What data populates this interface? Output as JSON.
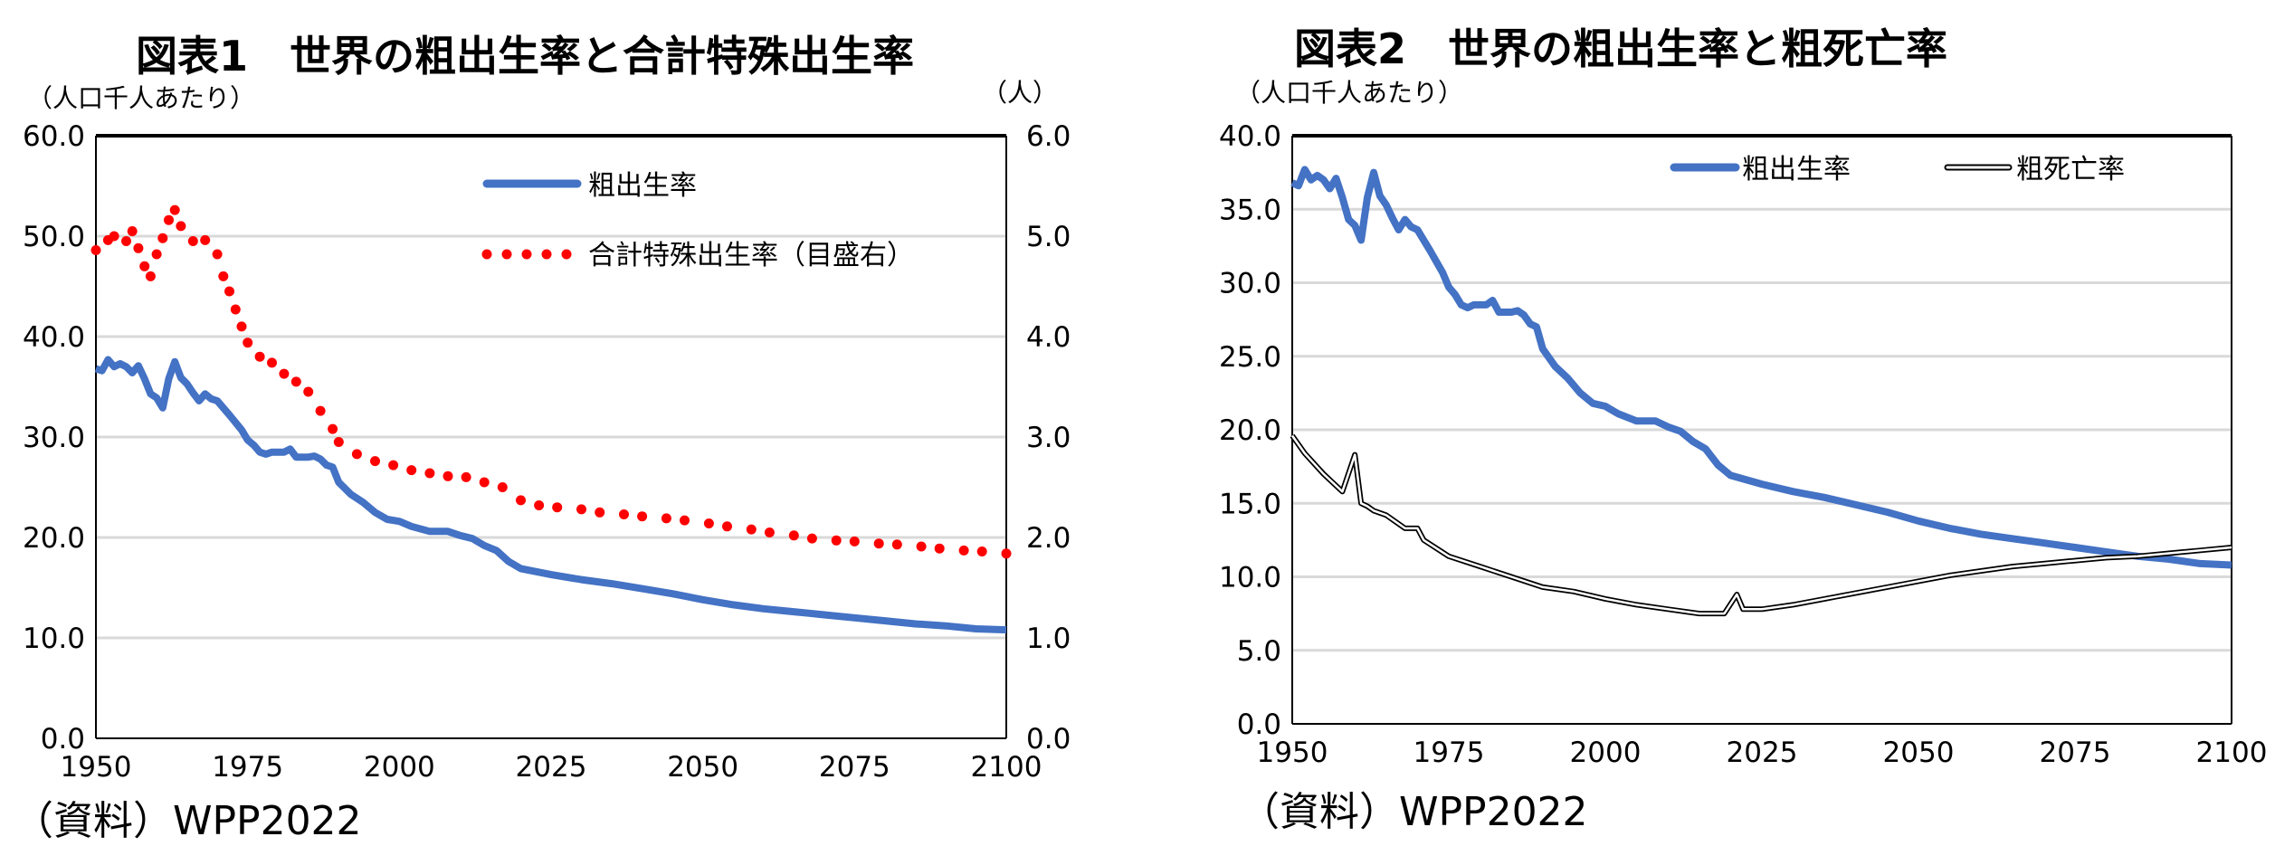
{
  "chart_data": [
    {
      "type": "line",
      "title": "図表1　世界の粗出生率と合計特殊出生率",
      "ylabel": "（人口千人あたり）",
      "y2label": "（人）",
      "source": "（資料）WPP2022",
      "xlim": [
        1950,
        2100
      ],
      "xticks": [
        "1950",
        "1975",
        "2000",
        "2025",
        "2050",
        "2075",
        "2100"
      ],
      "ylim": [
        0,
        60
      ],
      "yticks": [
        "0.0",
        "10.0",
        "20.0",
        "30.0",
        "40.0",
        "50.0",
        "60.0"
      ],
      "y2lim": [
        0,
        6
      ],
      "y2ticks": [
        "0.0",
        "1.0",
        "2.0",
        "3.0",
        "4.0",
        "5.0",
        "6.0"
      ],
      "grid": true,
      "legend_position": "top-right",
      "series": [
        {
          "name": "粗出生率",
          "axis": "left",
          "style": "solid",
          "color": "#4472C4",
          "x": [
            1950,
            1951,
            1952,
            1953,
            1954,
            1955,
            1956,
            1957,
            1958,
            1959,
            1960,
            1961,
            1962,
            1963,
            1964,
            1965,
            1966,
            1967,
            1968,
            1969,
            1970,
            1972,
            1974,
            1975,
            1976,
            1977,
            1978,
            1979,
            1981,
            1982,
            1983,
            1985,
            1986,
            1987,
            1988,
            1989,
            1990,
            1992,
            1994,
            1996,
            1998,
            2000,
            2002,
            2005,
            2008,
            2010,
            2012,
            2014,
            2016,
            2018,
            2020,
            2025,
            2030,
            2035,
            2040,
            2045,
            2050,
            2055,
            2060,
            2065,
            2070,
            2075,
            2080,
            2085,
            2090,
            2095,
            2100
          ],
          "y": [
            36.8,
            36.6,
            37.7,
            37.0,
            37.3,
            37.0,
            36.4,
            37.1,
            35.8,
            34.3,
            33.9,
            32.9,
            35.8,
            37.5,
            35.9,
            35.3,
            34.4,
            33.6,
            34.3,
            33.8,
            33.6,
            32.2,
            30.7,
            29.7,
            29.2,
            28.5,
            28.3,
            28.5,
            28.5,
            28.8,
            28.0,
            28.0,
            28.1,
            27.8,
            27.2,
            27.0,
            25.5,
            24.3,
            23.5,
            22.5,
            21.8,
            21.6,
            21.1,
            20.6,
            20.6,
            20.2,
            19.9,
            19.2,
            18.7,
            17.6,
            16.9,
            16.3,
            15.8,
            15.4,
            14.9,
            14.4,
            13.8,
            13.3,
            12.9,
            12.6,
            12.3,
            12.0,
            11.7,
            11.4,
            11.2,
            10.9,
            10.8
          ]
        },
        {
          "name": "合計特殊出生率（目盛右）",
          "axis": "right",
          "style": "dotted",
          "color": "#FF0000",
          "x": [
            1950,
            1952,
            1953,
            1955,
            1956,
            1957,
            1958,
            1959,
            1960,
            1961,
            1962,
            1963,
            1964,
            1966,
            1968,
            1970,
            1971,
            1972,
            1973,
            1974,
            1975,
            1977,
            1979,
            1981,
            1983,
            1985,
            1987,
            1989,
            1990,
            1993,
            1996,
            1999,
            2002,
            2005,
            2008,
            2011,
            2014,
            2017,
            2020,
            2023,
            2026,
            2030,
            2033,
            2037,
            2040,
            2044,
            2047,
            2051,
            2054,
            2058,
            2061,
            2065,
            2068,
            2072,
            2075,
            2079,
            2082,
            2086,
            2089,
            2093,
            2096,
            2100
          ],
          "y": [
            4.86,
            4.96,
            5.0,
            4.95,
            5.05,
            4.88,
            4.7,
            4.6,
            4.82,
            4.98,
            5.16,
            5.26,
            5.1,
            4.95,
            4.96,
            4.82,
            4.6,
            4.45,
            4.27,
            4.1,
            3.94,
            3.8,
            3.74,
            3.63,
            3.55,
            3.45,
            3.26,
            3.08,
            2.95,
            2.83,
            2.76,
            2.72,
            2.67,
            2.64,
            2.61,
            2.6,
            2.55,
            2.5,
            2.37,
            2.32,
            2.3,
            2.28,
            2.25,
            2.23,
            2.21,
            2.19,
            2.17,
            2.14,
            2.11,
            2.08,
            2.05,
            2.02,
            1.99,
            1.97,
            1.96,
            1.94,
            1.93,
            1.91,
            1.89,
            1.87,
            1.86,
            1.84
          ]
        }
      ]
    },
    {
      "type": "line",
      "title": "図表2　世界の粗出生率と粗死亡率",
      "ylabel": "（人口千人あたり）",
      "source": "（資料）WPP2022",
      "xlim": [
        1950,
        2100
      ],
      "xticks": [
        "1950",
        "1975",
        "2000",
        "2025",
        "2050",
        "2075",
        "2100"
      ],
      "ylim": [
        0,
        40
      ],
      "yticks": [
        "0.0",
        "5.0",
        "10.0",
        "15.0",
        "20.0",
        "25.0",
        "30.0",
        "35.0",
        "40.0"
      ],
      "grid": true,
      "legend_position": "top-right",
      "series": [
        {
          "name": "粗出生率",
          "style": "solid",
          "color": "#4472C4",
          "x": [
            1950,
            1951,
            1952,
            1953,
            1954,
            1955,
            1956,
            1957,
            1958,
            1959,
            1960,
            1961,
            1962,
            1963,
            1964,
            1965,
            1966,
            1967,
            1968,
            1969,
            1970,
            1972,
            1974,
            1975,
            1976,
            1977,
            1978,
            1979,
            1981,
            1982,
            1983,
            1985,
            1986,
            1987,
            1988,
            1989,
            1990,
            1992,
            1994,
            1996,
            1998,
            2000,
            2002,
            2005,
            2008,
            2010,
            2012,
            2014,
            2016,
            2018,
            2020,
            2025,
            2030,
            2035,
            2040,
            2045,
            2050,
            2055,
            2060,
            2065,
            2070,
            2075,
            2080,
            2085,
            2090,
            2095,
            2100
          ],
          "y": [
            36.8,
            36.6,
            37.7,
            37.0,
            37.3,
            37.0,
            36.4,
            37.1,
            35.8,
            34.3,
            33.9,
            32.9,
            35.8,
            37.5,
            35.9,
            35.3,
            34.4,
            33.6,
            34.3,
            33.8,
            33.6,
            32.2,
            30.7,
            29.7,
            29.2,
            28.5,
            28.3,
            28.5,
            28.5,
            28.8,
            28.0,
            28.0,
            28.1,
            27.8,
            27.2,
            27.0,
            25.5,
            24.3,
            23.5,
            22.5,
            21.8,
            21.6,
            21.1,
            20.6,
            20.6,
            20.2,
            19.9,
            19.2,
            18.7,
            17.6,
            16.9,
            16.3,
            15.8,
            15.4,
            14.9,
            14.4,
            13.8,
            13.3,
            12.9,
            12.6,
            12.3,
            12.0,
            11.7,
            11.4,
            11.2,
            10.9,
            10.8
          ]
        },
        {
          "name": "粗死亡率",
          "style": "outlined",
          "color": "#000000",
          "x": [
            1950,
            1952,
            1955,
            1958,
            1960,
            1961,
            1962,
            1963,
            1965,
            1968,
            1970,
            1971,
            1975,
            1980,
            1985,
            1990,
            1995,
            2000,
            2005,
            2010,
            2015,
            2019,
            2021,
            2022,
            2025,
            2030,
            2035,
            2040,
            2045,
            2050,
            2055,
            2060,
            2065,
            2070,
            2075,
            2080,
            2085,
            2090,
            2095,
            2100
          ],
          "y": [
            19.6,
            18.4,
            17.0,
            15.8,
            18.3,
            15.0,
            14.8,
            14.5,
            14.2,
            13.3,
            13.3,
            12.5,
            11.4,
            10.7,
            10.0,
            9.3,
            9.0,
            8.5,
            8.1,
            7.8,
            7.5,
            7.5,
            8.8,
            7.8,
            7.8,
            8.1,
            8.5,
            8.9,
            9.3,
            9.7,
            10.1,
            10.4,
            10.7,
            10.9,
            11.1,
            11.3,
            11.4,
            11.6,
            11.8,
            12.0
          ]
        }
      ]
    }
  ]
}
